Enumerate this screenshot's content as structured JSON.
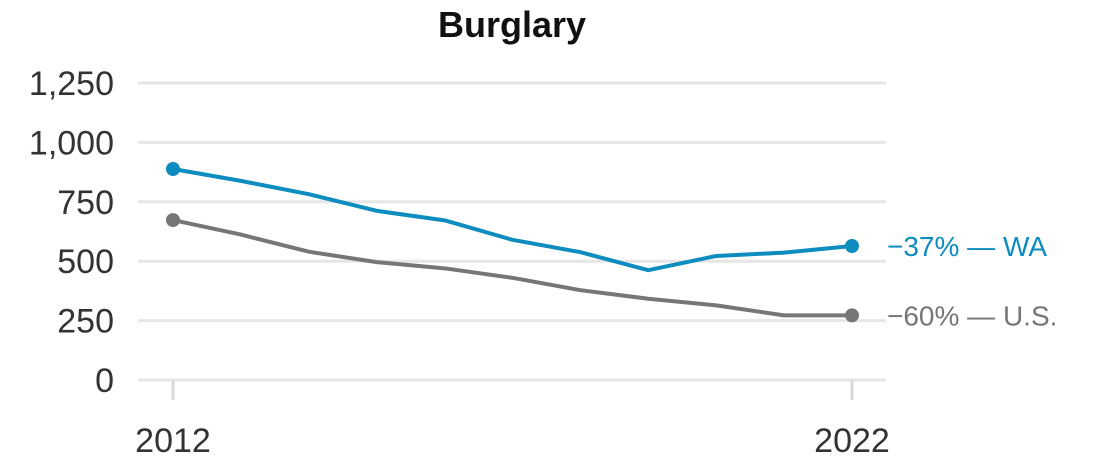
{
  "chart_data": {
    "type": "line",
    "title": "Burglary",
    "xlabel": "",
    "ylabel": "",
    "x": [
      2012,
      2013,
      2014,
      2015,
      2016,
      2017,
      2018,
      2019,
      2020,
      2021,
      2022
    ],
    "xticks": [
      "2012",
      "2022"
    ],
    "yticks": [
      "0",
      "250",
      "500",
      "750",
      "1,000",
      "1,250"
    ],
    "ylim": [
      0,
      1250
    ],
    "grid": true,
    "series": [
      {
        "name": "WA",
        "label": "−37% — WA",
        "color": "#0d8cbf",
        "values": [
          888,
          838,
          782,
          712,
          672,
          590,
          538,
          462,
          522,
          536,
          564
        ]
      },
      {
        "name": "U.S.",
        "label": "−60% — U.S.",
        "color": "#767676",
        "values": [
          673,
          612,
          540,
          496,
          470,
          430,
          378,
          342,
          314,
          272,
          272
        ]
      }
    ]
  }
}
